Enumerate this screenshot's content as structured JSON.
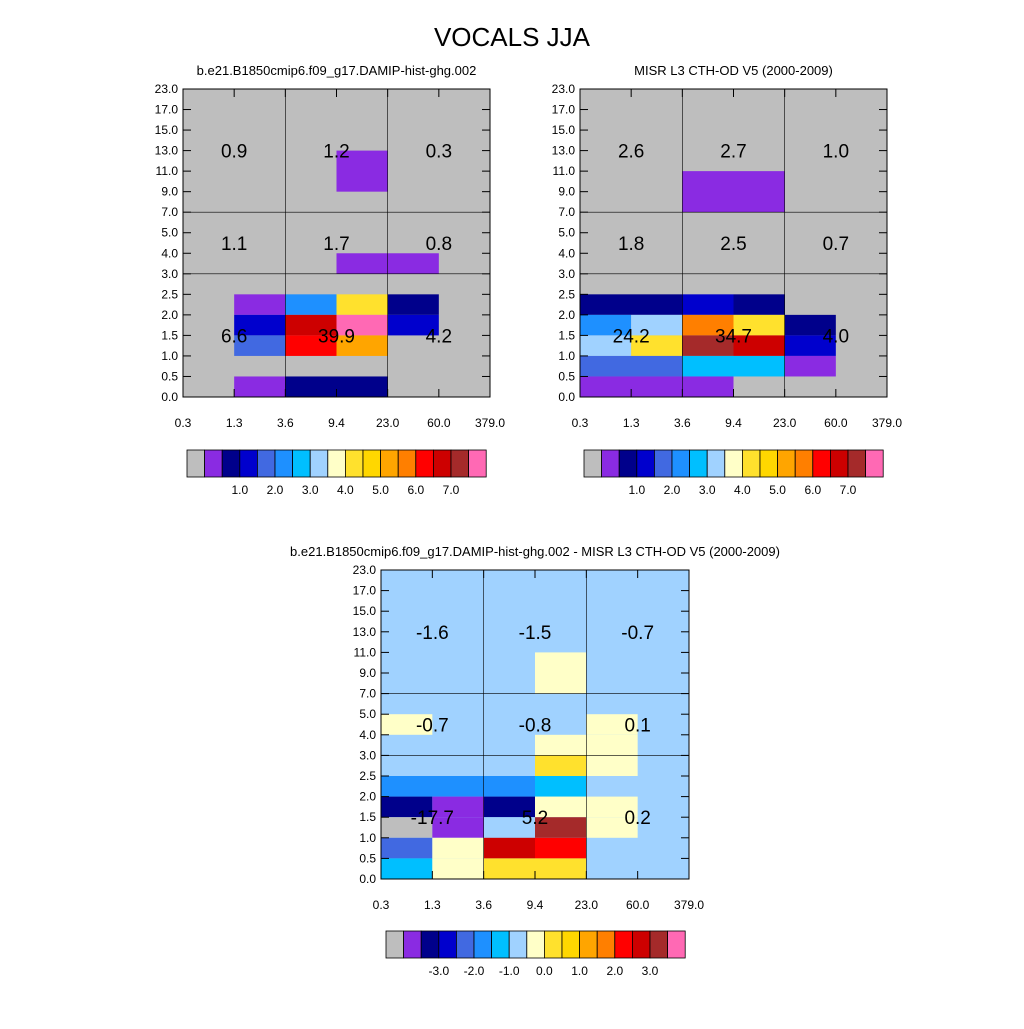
{
  "figure": {
    "title": "VOCALS JJA"
  },
  "y_ticks": [
    "0.0",
    "0.5",
    "1.0",
    "1.5",
    "2.0",
    "2.5",
    "3.0",
    "4.0",
    "5.0",
    "7.0",
    "9.0",
    "11.0",
    "13.0",
    "15.0",
    "17.0",
    "23.0"
  ],
  "x_ticks": [
    "0.3",
    "1.3",
    "3.6",
    "9.4",
    "23.0",
    "60.0",
    "379.0"
  ],
  "colormap": {
    "seq": [
      "#bebebe",
      "#8a2be2",
      "#00008b",
      "#0000cd",
      "#4169e1",
      "#1e90ff",
      "#00bfff",
      "#a0d2ff",
      "#ffffc8",
      "#ffe12d",
      "#ffd700",
      "#ffa500",
      "#ff7f00",
      "#ff0000",
      "#cd0000",
      "#a52a2a",
      "#ff69b4"
    ],
    "diff": [
      "#bebebe",
      "#8a2be2",
      "#00008b",
      "#0000cd",
      "#4169e1",
      "#1e90ff",
      "#00bfff",
      "#a0d2ff",
      "#ffffc8",
      "#ffe12d",
      "#ffd700",
      "#ffa500",
      "#ff7f00",
      "#ff0000",
      "#cd0000",
      "#a52a2a",
      "#ff69b4"
    ]
  },
  "chart_data": [
    {
      "type": "heatmap",
      "title": "b.e21.B1850cmip6.f09_g17.DAMIP-hist-ghg.002",
      "colorbar_labels": [
        "1.0",
        "2.0",
        "3.0",
        "4.0",
        "5.0",
        "6.0",
        "7.0"
      ],
      "background_index": 0,
      "cells": [
        {
          "c0": 3,
          "c1": 4,
          "r0": 10,
          "r1": 12,
          "ci": 1
        },
        {
          "c0": 3,
          "c1": 5,
          "r0": 6,
          "r1": 7,
          "ci": 1
        },
        {
          "c0": 1,
          "c1": 2,
          "r0": 4,
          "r1": 5,
          "ci": 1
        },
        {
          "c0": 2,
          "c1": 3,
          "r0": 4,
          "r1": 5,
          "ci": 5
        },
        {
          "c0": 3,
          "c1": 4,
          "r0": 4,
          "r1": 5,
          "ci": 9
        },
        {
          "c0": 4,
          "c1": 5,
          "r0": 4,
          "r1": 5,
          "ci": 2
        },
        {
          "c0": 1,
          "c1": 2,
          "r0": 3,
          "r1": 4,
          "ci": 3
        },
        {
          "c0": 2,
          "c1": 3,
          "r0": 3,
          "r1": 4,
          "ci": 14
        },
        {
          "c0": 3,
          "c1": 4,
          "r0": 3,
          "r1": 4,
          "ci": 16
        },
        {
          "c0": 4,
          "c1": 5,
          "r0": 3,
          "r1": 4,
          "ci": 3
        },
        {
          "c0": 1,
          "c1": 2,
          "r0": 2,
          "r1": 3,
          "ci": 4
        },
        {
          "c0": 2,
          "c1": 3,
          "r0": 2,
          "r1": 3,
          "ci": 13
        },
        {
          "c0": 3,
          "c1": 4,
          "r0": 2,
          "r1": 3,
          "ci": 11
        },
        {
          "c0": 1,
          "c1": 2,
          "r0": 0,
          "r1": 1,
          "ci": 1
        },
        {
          "c0": 2,
          "c1": 4,
          "r0": 0,
          "r1": 1,
          "ci": 2
        }
      ],
      "labels": [
        {
          "text": "0.9",
          "col": 0,
          "row": 2
        },
        {
          "text": "1.2",
          "col": 1,
          "row": 2
        },
        {
          "text": "0.3",
          "col": 2,
          "row": 2
        },
        {
          "text": "1.1",
          "col": 0,
          "row": 1
        },
        {
          "text": "1.7",
          "col": 1,
          "row": 1
        },
        {
          "text": "0.8",
          "col": 2,
          "row": 1
        },
        {
          "text": "6.6",
          "col": 0,
          "row": 0
        },
        {
          "text": "39.9",
          "col": 1,
          "row": 0
        },
        {
          "text": "4.2",
          "col": 2,
          "row": 0
        }
      ]
    },
    {
      "type": "heatmap",
      "title": "MISR L3 CTH-OD V5 (2000-2009)",
      "colorbar_labels": [
        "1.0",
        "2.0",
        "3.0",
        "4.0",
        "5.0",
        "6.0",
        "7.0"
      ],
      "background_index": 0,
      "cells": [
        {
          "c0": 2,
          "c1": 4,
          "r0": 9,
          "r1": 11,
          "ci": 1
        },
        {
          "c0": 0,
          "c1": 2,
          "r0": 4,
          "r1": 5,
          "ci": 2
        },
        {
          "c0": 2,
          "c1": 3,
          "r0": 4,
          "r1": 5,
          "ci": 3
        },
        {
          "c0": 3,
          "c1": 4,
          "r0": 4,
          "r1": 5,
          "ci": 2
        },
        {
          "c0": 0,
          "c1": 1,
          "r0": 3,
          "r1": 4,
          "ci": 5
        },
        {
          "c0": 1,
          "c1": 2,
          "r0": 3,
          "r1": 4,
          "ci": 7
        },
        {
          "c0": 2,
          "c1": 3,
          "r0": 3,
          "r1": 4,
          "ci": 12
        },
        {
          "c0": 3,
          "c1": 4,
          "r0": 3,
          "r1": 4,
          "ci": 9
        },
        {
          "c0": 4,
          "c1": 5,
          "r0": 3,
          "r1": 4,
          "ci": 2
        },
        {
          "c0": 0,
          "c1": 1,
          "r0": 2,
          "r1": 3,
          "ci": 7
        },
        {
          "c0": 1,
          "c1": 2,
          "r0": 2,
          "r1": 3,
          "ci": 9
        },
        {
          "c0": 2,
          "c1": 3,
          "r0": 2,
          "r1": 3,
          "ci": 15
        },
        {
          "c0": 3,
          "c1": 4,
          "r0": 2,
          "r1": 3,
          "ci": 14
        },
        {
          "c0": 4,
          "c1": 5,
          "r0": 2,
          "r1": 3,
          "ci": 3
        },
        {
          "c0": 0,
          "c1": 2,
          "r0": 1,
          "r1": 2,
          "ci": 4
        },
        {
          "c0": 2,
          "c1": 4,
          "r0": 1,
          "r1": 2,
          "ci": 6
        },
        {
          "c0": 4,
          "c1": 5,
          "r0": 1,
          "r1": 2,
          "ci": 1
        },
        {
          "c0": 0,
          "c1": 3,
          "r0": 0,
          "r1": 1,
          "ci": 1
        }
      ],
      "labels": [
        {
          "text": "2.6",
          "col": 0,
          "row": 2
        },
        {
          "text": "2.7",
          "col": 1,
          "row": 2
        },
        {
          "text": "1.0",
          "col": 2,
          "row": 2
        },
        {
          "text": "1.8",
          "col": 0,
          "row": 1
        },
        {
          "text": "2.5",
          "col": 1,
          "row": 1
        },
        {
          "text": "0.7",
          "col": 2,
          "row": 1
        },
        {
          "text": "24.2",
          "col": 0,
          "row": 0
        },
        {
          "text": "34.7",
          "col": 1,
          "row": 0
        },
        {
          "text": "4.0",
          "col": 2,
          "row": 0
        }
      ]
    },
    {
      "type": "heatmap",
      "title": "b.e21.B1850cmip6.f09_g17.DAMIP-hist-ghg.002 - MISR L3 CTH-OD V5 (2000-2009)",
      "colorbar_labels": [
        "-3.0",
        "-2.0",
        "-1.0",
        "0.0",
        "1.0",
        "2.0",
        "3.0"
      ],
      "background_index": 7,
      "cells": [
        {
          "c0": 3,
          "c1": 4,
          "r0": 9,
          "r1": 11,
          "ci": 8
        },
        {
          "c0": 0,
          "c1": 1,
          "r0": 7,
          "r1": 8,
          "ci": 8
        },
        {
          "c0": 3,
          "c1": 4,
          "r0": 7,
          "r1": 8,
          "ci": 7
        },
        {
          "c0": 4,
          "c1": 5,
          "r0": 7,
          "r1": 8,
          "ci": 8
        },
        {
          "c0": 3,
          "c1": 4,
          "r0": 6,
          "r1": 7,
          "ci": 8
        },
        {
          "c0": 4,
          "c1": 5,
          "r0": 6,
          "r1": 7,
          "ci": 8
        },
        {
          "c0": 3,
          "c1": 4,
          "r0": 5,
          "r1": 6,
          "ci": 9
        },
        {
          "c0": 4,
          "c1": 5,
          "r0": 5,
          "r1": 6,
          "ci": 8
        },
        {
          "c0": 0,
          "c1": 3,
          "r0": 4,
          "r1": 5,
          "ci": 5
        },
        {
          "c0": 3,
          "c1": 4,
          "r0": 4,
          "r1": 5,
          "ci": 6
        },
        {
          "c0": 0,
          "c1": 1,
          "r0": 3,
          "r1": 4,
          "ci": 2
        },
        {
          "c0": 1,
          "c1": 2,
          "r0": 3,
          "r1": 4,
          "ci": 1
        },
        {
          "c0": 2,
          "c1": 3,
          "r0": 3,
          "r1": 4,
          "ci": 2
        },
        {
          "c0": 3,
          "c1": 4,
          "r0": 3,
          "r1": 4,
          "ci": 8
        },
        {
          "c0": 4,
          "c1": 5,
          "r0": 3,
          "r1": 4,
          "ci": 8
        },
        {
          "c0": 0,
          "c1": 1,
          "r0": 2,
          "r1": 3,
          "ci": 0
        },
        {
          "c0": 1,
          "c1": 2,
          "r0": 2,
          "r1": 3,
          "ci": 1
        },
        {
          "c0": 2,
          "c1": 3,
          "r0": 2,
          "r1": 3,
          "ci": 7
        },
        {
          "c0": 3,
          "c1": 4,
          "r0": 2,
          "r1": 3,
          "ci": 15
        },
        {
          "c0": 4,
          "c1": 5,
          "r0": 2,
          "r1": 3,
          "ci": 8
        },
        {
          "c0": 0,
          "c1": 1,
          "r0": 1,
          "r1": 2,
          "ci": 4
        },
        {
          "c0": 1,
          "c1": 2,
          "r0": 1,
          "r1": 2,
          "ci": 8
        },
        {
          "c0": 2,
          "c1": 3,
          "r0": 1,
          "r1": 2,
          "ci": 14
        },
        {
          "c0": 3,
          "c1": 4,
          "r0": 1,
          "r1": 2,
          "ci": 13
        },
        {
          "c0": 0,
          "c1": 1,
          "r0": 0,
          "r1": 1,
          "ci": 6
        },
        {
          "c0": 1,
          "c1": 2,
          "r0": 0,
          "r1": 1,
          "ci": 8
        },
        {
          "c0": 2,
          "c1": 4,
          "r0": 0,
          "r1": 1,
          "ci": 9
        }
      ],
      "labels": [
        {
          "text": "-1.6",
          "col": 0,
          "row": 2
        },
        {
          "text": "-1.5",
          "col": 1,
          "row": 2
        },
        {
          "text": "-0.7",
          "col": 2,
          "row": 2
        },
        {
          "text": "-0.7",
          "col": 0,
          "row": 1
        },
        {
          "text": "-0.8",
          "col": 1,
          "row": 1
        },
        {
          "text": "0.1",
          "col": 2,
          "row": 1
        },
        {
          "text": "-17.7",
          "col": 0,
          "row": 0
        },
        {
          "text": "5.2",
          "col": 1,
          "row": 0
        },
        {
          "text": "0.2",
          "col": 2,
          "row": 0
        }
      ]
    }
  ]
}
